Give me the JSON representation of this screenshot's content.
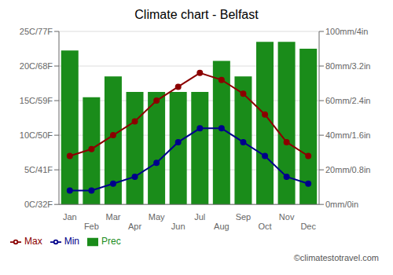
{
  "chart_data": {
    "type": "bar",
    "title": "Climate chart - Belfast",
    "categories": [
      "Jan",
      "Feb",
      "Mar",
      "Apr",
      "May",
      "Jun",
      "Jul",
      "Aug",
      "Sep",
      "Oct",
      "Nov",
      "Dec"
    ],
    "series": [
      {
        "name": "Prec",
        "type": "bar",
        "axis": "y2",
        "color": "#1a8c1a",
        "values": [
          89,
          62,
          74,
          65,
          65,
          65,
          65,
          83,
          74,
          94,
          94,
          90
        ]
      },
      {
        "name": "Min",
        "type": "line",
        "color": "#00008B",
        "marker": "circle",
        "values": [
          2,
          2,
          3,
          4,
          6,
          9,
          11,
          11,
          9,
          7,
          4,
          3
        ]
      },
      {
        "name": "Max",
        "type": "line",
        "color": "#8B0000",
        "marker": "circle",
        "values": [
          7,
          8,
          10,
          12,
          15,
          17,
          19,
          18,
          16,
          13,
          9,
          7
        ]
      }
    ],
    "ylim": [
      0,
      25
    ],
    "yticks": [
      {
        "value": 0,
        "label": "0C/32F"
      },
      {
        "value": 5,
        "label": "5C/41F"
      },
      {
        "value": 10,
        "label": "10C/50F"
      },
      {
        "value": 15,
        "label": "15C/59F"
      },
      {
        "value": 20,
        "label": "20C/68F"
      },
      {
        "value": 25,
        "label": "25C/77F"
      }
    ],
    "y2lim": [
      0,
      100
    ],
    "y2ticks": [
      {
        "value": 0,
        "label": "0mm/0in"
      },
      {
        "value": 20,
        "label": "20mm/0.8in"
      },
      {
        "value": 40,
        "label": "40mm/1.6in"
      },
      {
        "value": 60,
        "label": "60mm/2.4in"
      },
      {
        "value": 80,
        "label": "80mm/3.2in"
      },
      {
        "value": 100,
        "label": "100mm/4in"
      }
    ],
    "grid": true,
    "legend": "bottom left",
    "annotations": [
      "©climatestotravel.com"
    ]
  }
}
